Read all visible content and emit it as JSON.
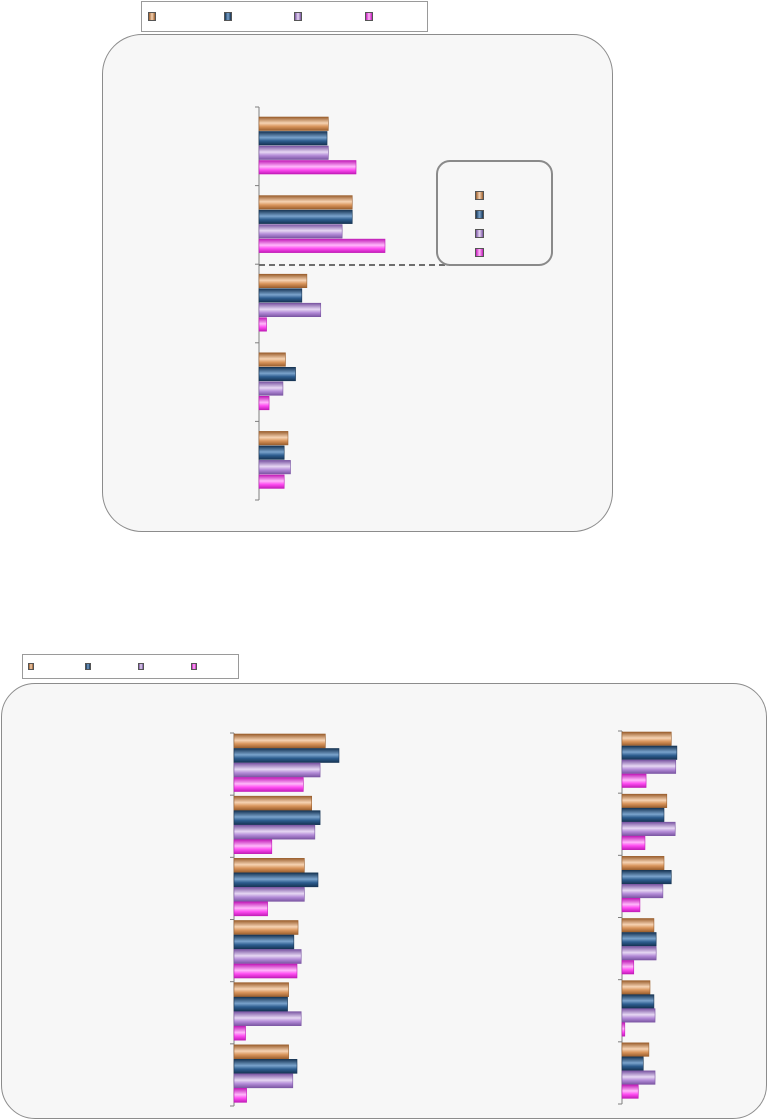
{
  "colors": {
    "series": [
      "#d9955c",
      "#2d5d8f",
      "#b48cd8",
      "#ff4df2"
    ],
    "series_dark": [
      "#9b5f2e",
      "#163454",
      "#7b56a3",
      "#c21cb8"
    ],
    "series_light": [
      "#f6d3b3",
      "#7aa3cc",
      "#e6d7f3",
      "#ffb8fa"
    ],
    "panel_bg": "#f7f7f7",
    "axis": "#7f7f7f"
  },
  "chart_data": [
    {
      "type": "bar",
      "orientation": "horizontal",
      "title": "",
      "xlabel": "",
      "ylabel": "",
      "categories": [
        "",
        "",
        "",
        "",
        ""
      ],
      "series": [
        {
          "values": [
            0.55,
            0.74,
            0.38,
            0.21,
            0.23
          ]
        },
        {
          "values": [
            0.54,
            0.74,
            0.34,
            0.29,
            0.2
          ]
        },
        {
          "values": [
            0.55,
            0.66,
            0.49,
            0.19,
            0.25
          ]
        },
        {
          "values": [
            0.77,
            1.0,
            0.06,
            0.08,
            0.2
          ]
        }
      ],
      "xlim": [
        0,
        1
      ],
      "grid": false,
      "legend": "top"
    },
    {
      "type": "bar",
      "orientation": "horizontal",
      "title": "",
      "xlabel": "",
      "ylabel": "",
      "categories": [
        "",
        "",
        "",
        "",
        "",
        ""
      ],
      "series": [
        {
          "values": [
            0.87,
            0.74,
            0.67,
            0.61,
            0.52,
            0.52
          ]
        },
        {
          "values": [
            1.0,
            0.82,
            0.8,
            0.57,
            0.51,
            0.6
          ]
        },
        {
          "values": [
            0.82,
            0.77,
            0.67,
            0.64,
            0.64,
            0.56
          ]
        },
        {
          "values": [
            0.66,
            0.36,
            0.32,
            0.6,
            0.11,
            0.12
          ]
        }
      ],
      "xlim": [
        0,
        1
      ],
      "grid": false,
      "legend": "top"
    },
    {
      "type": "bar",
      "orientation": "horizontal",
      "title": "",
      "xlabel": "",
      "ylabel": "",
      "categories": [
        "",
        "",
        "",
        "",
        "",
        ""
      ],
      "series": [
        {
          "values": [
            0.88,
            0.8,
            0.75,
            0.57,
            0.5,
            0.48
          ]
        },
        {
          "values": [
            0.98,
            0.75,
            0.88,
            0.61,
            0.57,
            0.38
          ]
        },
        {
          "values": [
            0.96,
            0.95,
            0.73,
            0.61,
            0.59,
            0.59
          ]
        },
        {
          "values": [
            0.43,
            0.41,
            0.32,
            0.21,
            0.05,
            0.29
          ]
        }
      ],
      "xlim": [
        0,
        1
      ],
      "grid": false,
      "legend": "top"
    }
  ]
}
